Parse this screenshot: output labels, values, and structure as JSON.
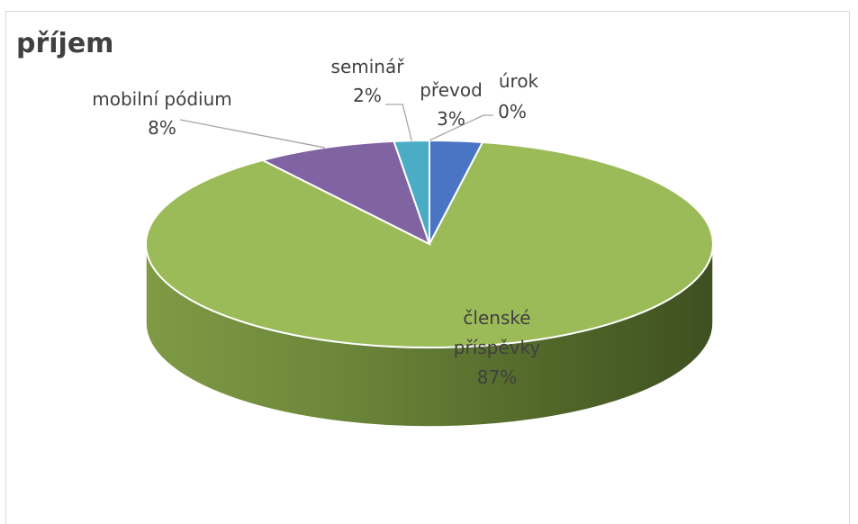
{
  "chart_data": {
    "type": "pie",
    "title": "příjem",
    "slices": [
      {
        "label": "převod",
        "value": 3,
        "value_label": "3%",
        "color": "#4a74c4"
      },
      {
        "label": "členské příspěvky",
        "value": 87,
        "value_label": "87%",
        "color": "#9bbb59"
      },
      {
        "label": "mobilní pódium",
        "value": 8,
        "value_label": "8%",
        "color": "#8064a2"
      },
      {
        "label": "seminář",
        "value": 2,
        "value_label": "2%",
        "color": "#4bacc6"
      },
      {
        "label": "úrok",
        "value": 0,
        "value_label": "0%",
        "color": "#f79646"
      }
    ],
    "legend": "none",
    "style": "3d"
  }
}
